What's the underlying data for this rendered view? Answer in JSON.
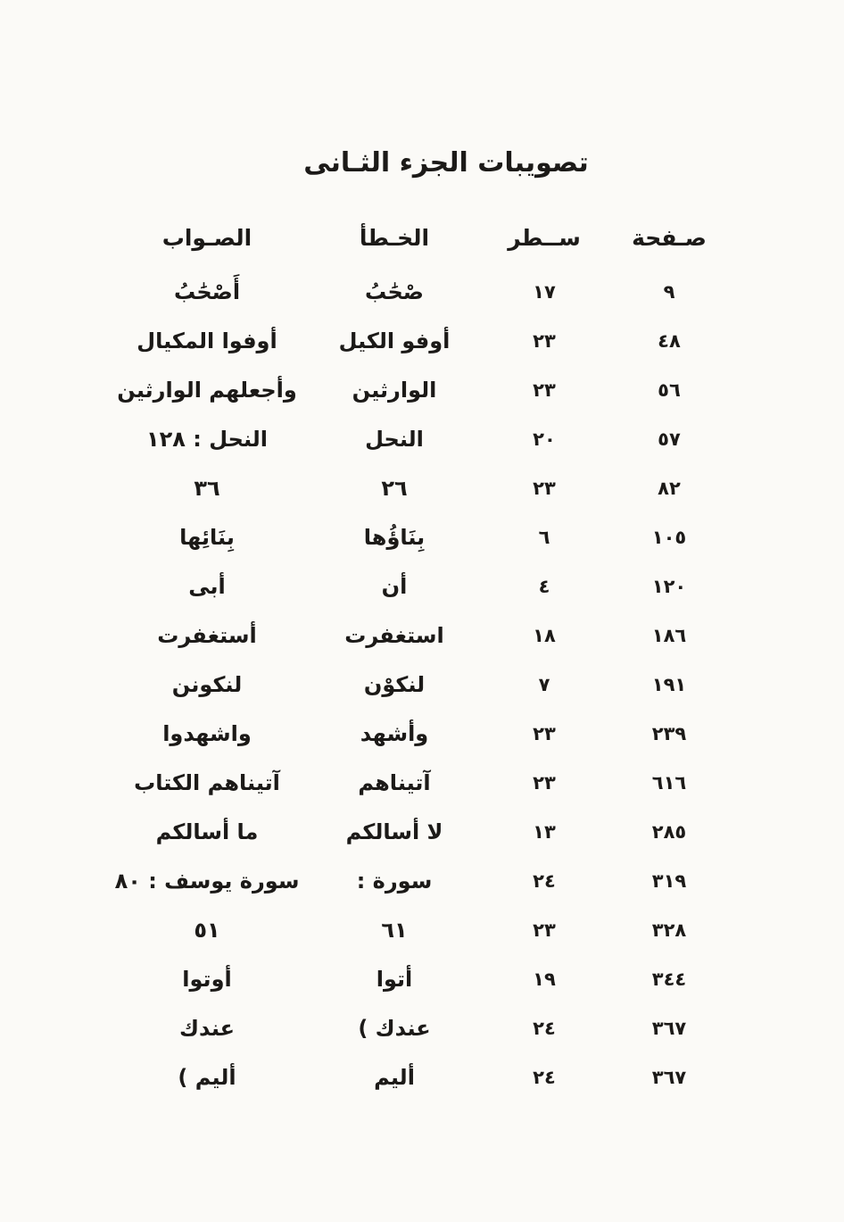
{
  "title": "تصويبات الجزء الثـانى",
  "table": {
    "headers": {
      "page": "صـفحة",
      "line": "ســطر",
      "error": "الخـطأ",
      "correction": "الصـواب"
    },
    "rows": [
      {
        "page": "٩",
        "line": "١٧",
        "error": "صْحَٰبُ",
        "correction": "أَصْحَٰبُ"
      },
      {
        "page": "٤٨",
        "line": "٢٣",
        "error": "أوفو الكيل",
        "correction": "أوفوا المكيال"
      },
      {
        "page": "٥٦",
        "line": "٢٣",
        "error": "الوارثين",
        "correction": "وأجعلهم الوارثين"
      },
      {
        "page": "٥٧",
        "line": "٢٠",
        "error": "النحل",
        "correction": "النحل : ١٢٨"
      },
      {
        "page": "٨٢",
        "line": "٢٣",
        "error": "٢٦",
        "correction": "٣٦"
      },
      {
        "page": "١٠٥",
        "line": "٦",
        "error": "بِنَاؤُها",
        "correction": "بِنَائِها"
      },
      {
        "page": "١٢٠",
        "line": "٤",
        "error": "أن",
        "correction": "أبى"
      },
      {
        "page": "١٨٦",
        "line": "١٨",
        "error": "استغفرت",
        "correction": "أستغفرت"
      },
      {
        "page": "١٩١",
        "line": "٧",
        "error": "لنكوْن",
        "correction": "لنكونن"
      },
      {
        "page": "٢٣٩",
        "line": "٢٣",
        "error": "وأشهد",
        "correction": "واشهدوا"
      },
      {
        "page": "٦١٦",
        "line": "٢٣",
        "error": "آتيناهم",
        "correction": "آتيناهم الكتاب"
      },
      {
        "page": "٢٨٥",
        "line": "١٣",
        "error": "لا أسالكم",
        "correction": "ما أسالكم"
      },
      {
        "page": "٣١٩",
        "line": "٢٤",
        "error": "سورة :",
        "correction": "سورة يوسف : ٨٠"
      },
      {
        "page": "٣٢٨",
        "line": "٢٣",
        "error": "٦١",
        "correction": "٥١"
      },
      {
        "page": "٣٤٤",
        "line": "١٩",
        "error": "أتوا",
        "correction": "أوتوا"
      },
      {
        "page": "٣٦٧",
        "line": "٢٤",
        "error": "عندك )",
        "correction": "عندك"
      },
      {
        "page": "٣٦٧",
        "line": "٢٤",
        "error": "أليم",
        "correction": "أليم )"
      }
    ]
  }
}
